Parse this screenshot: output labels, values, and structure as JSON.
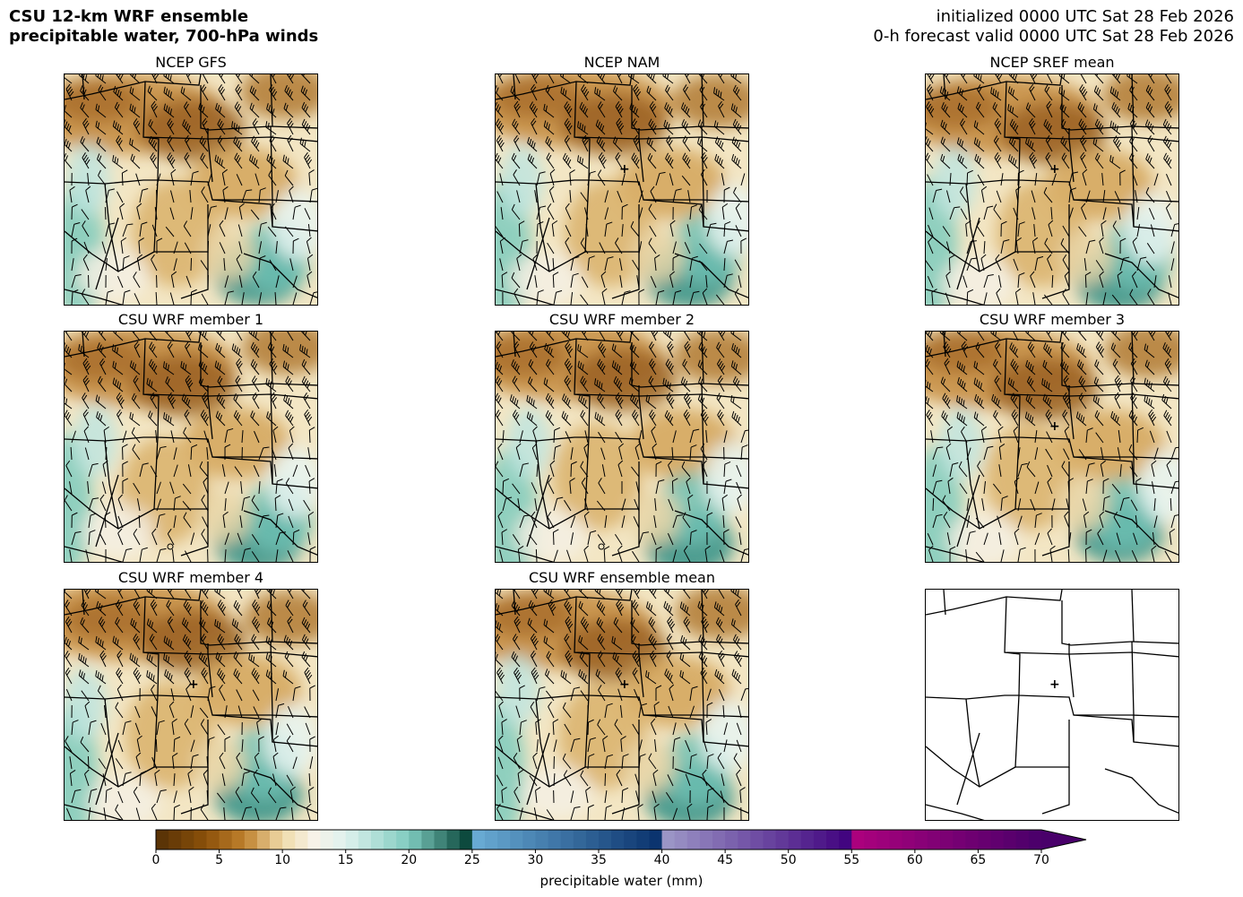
{
  "header": {
    "title_line1": "CSU 12-km WRF ensemble",
    "title_line2": "precipitable water, 700-hPa winds",
    "init_line": "initialized 0000 UTC Sat 28 Feb 2026",
    "valid_line": "0-h forecast valid 0000 UTC Sat 28 Feb 2026"
  },
  "panels": [
    {
      "title": "NCEP GFS",
      "variant": 0,
      "marker": false
    },
    {
      "title": "NCEP NAM",
      "variant": 1,
      "marker": true
    },
    {
      "title": "NCEP SREF mean",
      "variant": 2,
      "marker": true
    },
    {
      "title": "CSU WRF member 1",
      "variant": 3,
      "marker": false,
      "circle": true
    },
    {
      "title": "CSU WRF member 2",
      "variant": 4,
      "marker": false,
      "circle": true
    },
    {
      "title": "CSU WRF member 3",
      "variant": 5,
      "marker": true
    },
    {
      "title": "CSU WRF member 4",
      "variant": 6,
      "marker": true
    },
    {
      "title": "CSU WRF ensemble mean",
      "variant": 7,
      "marker": true
    },
    {
      "title": "",
      "variant": 8,
      "marker": true,
      "blank_map": true
    }
  ],
  "colorbar": {
    "label": "precipitable water (mm)",
    "ticks": [
      "0",
      "5",
      "10",
      "15",
      "20",
      "25",
      "30",
      "35",
      "40",
      "45",
      "50",
      "55",
      "60",
      "65",
      "70"
    ],
    "min": 0,
    "max": 70,
    "extend": "max",
    "colors": [
      "#543005",
      "#8c510a",
      "#bf812d",
      "#dfc27d",
      "#f6e8c3",
      "#f5f5f5",
      "#c7eae5",
      "#80cdc1",
      "#35978f",
      "#01665e",
      "#003c30",
      "#6baed6",
      "#3182bd",
      "#08519c",
      "#08306b",
      "#9e9ac8",
      "#807dba",
      "#6a51a3",
      "#3f007d",
      "#ae017e",
      "#7a0177",
      "#49006a"
    ]
  }
}
